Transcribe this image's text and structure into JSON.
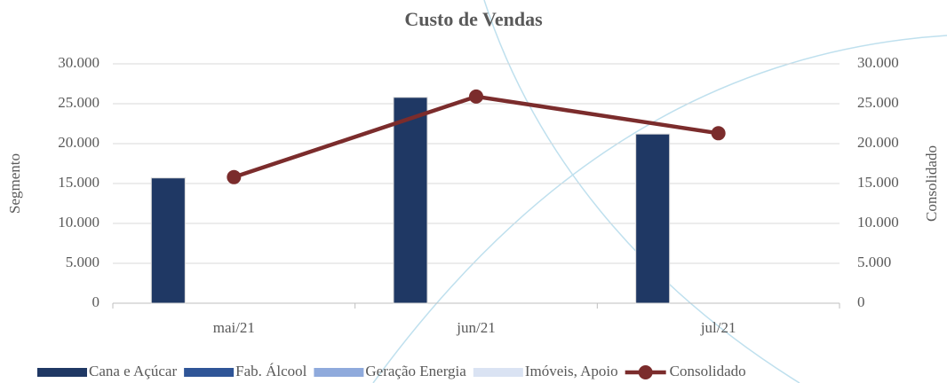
{
  "chart_data": {
    "type": "bar",
    "title": "Custo de Vendas",
    "y_label": "Segmento",
    "y2_label": "Consolidado",
    "categories": [
      "mai/21",
      "jun/21",
      "jul/21"
    ],
    "series": [
      {
        "name": "Cana e Açúcar",
        "color": "#1f3864",
        "values": [
          15700,
          25800,
          21200
        ]
      },
      {
        "name": "Fab. Álcool",
        "color": "#2f5597",
        "values": [
          0,
          0,
          0
        ]
      },
      {
        "name": "Geração Energia",
        "color": "#8faadc",
        "values": [
          0,
          0,
          0
        ]
      },
      {
        "name": "Imóveis, Apoio",
        "color": "#dae3f3",
        "values": [
          0,
          0,
          0
        ]
      },
      {
        "name": "Consolidado",
        "color": "#7b2c2c",
        "type": "line",
        "axis": "y2",
        "values": [
          15800,
          25900,
          21300
        ]
      }
    ],
    "ylim": [
      0,
      30000
    ],
    "yticks": [
      0,
      {
        "value": 5000,
        "label": "5.000"
      },
      {
        "value": 10000,
        "label": "10.000"
      },
      {
        "value": 15000,
        "label": "15.000"
      },
      {
        "value": 20000,
        "label": "20.000"
      },
      {
        "value": 25000,
        "label": "25.000"
      },
      {
        "value": 30000,
        "label": "30.000"
      }
    ],
    "y2lim": [
      0,
      30000
    ],
    "y2ticks": [
      0,
      {
        "value": 5000,
        "label": "5.000"
      },
      {
        "value": 10000,
        "label": "10.000"
      },
      {
        "value": 15000,
        "label": "15.000"
      },
      {
        "value": 20000,
        "label": "20.000"
      },
      {
        "value": 25000,
        "label": "25.000"
      },
      {
        "value": 30000,
        "label": "30.000"
      }
    ],
    "grid": true,
    "legend": "bottom"
  }
}
